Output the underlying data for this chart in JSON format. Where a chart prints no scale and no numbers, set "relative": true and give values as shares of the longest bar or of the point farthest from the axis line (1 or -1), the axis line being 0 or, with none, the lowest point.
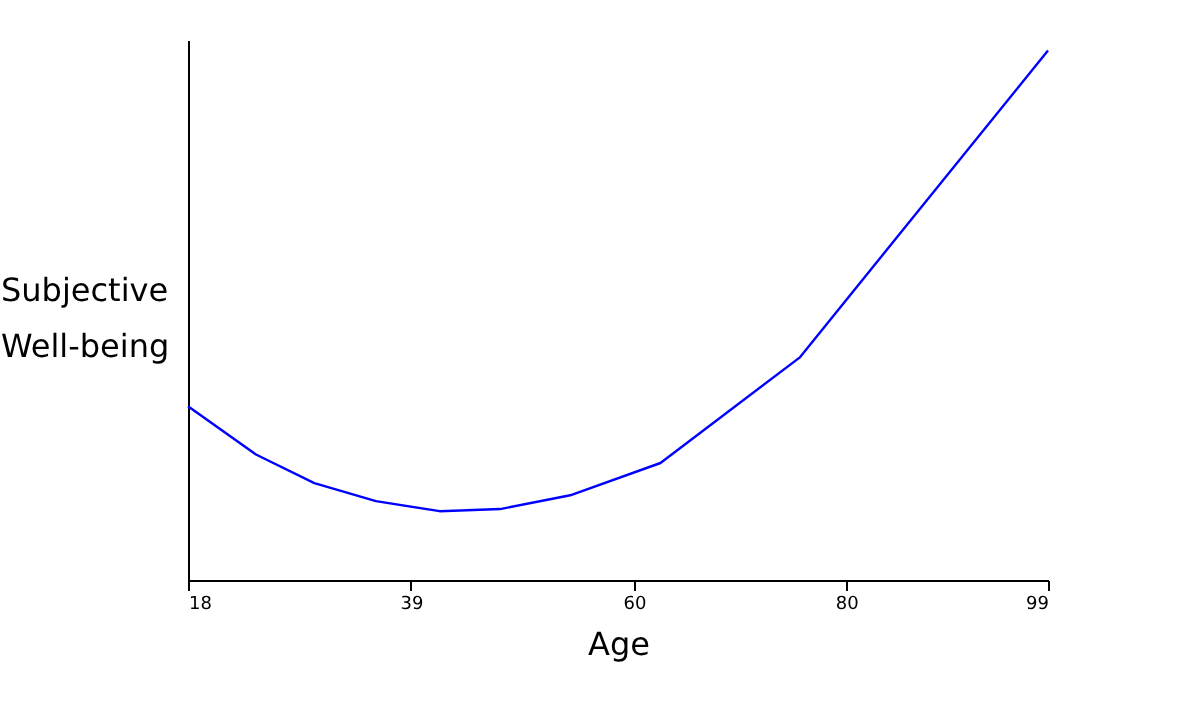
{
  "chart_data": {
    "type": "line",
    "xlabel": "Age",
    "ylabel": "Subjective Well-being",
    "relative": true,
    "x": [
      18,
      24.4,
      29.9,
      35.7,
      41.7,
      47.4,
      54,
      62.5,
      75.6,
      99
    ],
    "series": [
      {
        "color": "#0000ff",
        "values": [
          0.328,
          0.237,
          0.183,
          0.149,
          0.13,
          0.134,
          0.16,
          0.221,
          0.42,
          1
        ]
      }
    ],
    "xlim": [
      18,
      99
    ],
    "xticks": [
      18,
      39,
      60,
      80,
      99
    ],
    "grid": false,
    "legend": false,
    "marker": "none",
    "line_style": "solid"
  }
}
